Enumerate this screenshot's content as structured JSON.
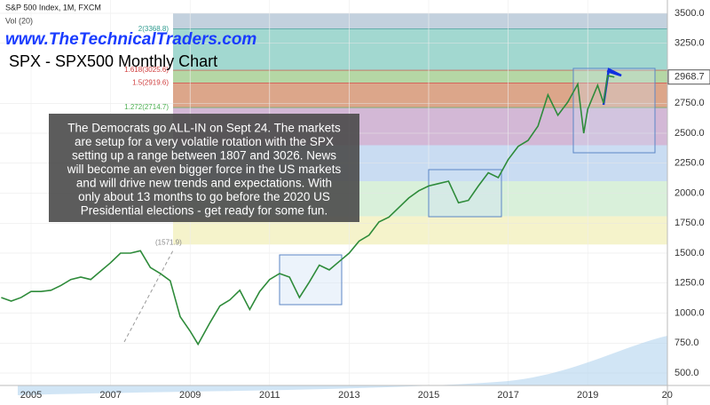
{
  "chart_data": {
    "type": "line",
    "header": "S&P 500 Index, 1M, FXCM",
    "volume_label": "Vol (20)",
    "website": "www.TheTechnicalTraders.com",
    "title": "SPX - SPX500 Monthly Chart",
    "note_lines": [
      "The Democrats go ALL-IN on Sept 24.  The markets",
      "are setup for a very volatile rotation with the SPX",
      "setting up a range between 1807 and 3026. News",
      "will become an even bigger force in the US markets",
      "and will drive new trends and expectations.  With",
      "only about 13 months to go before the 2020 US",
      "Presidential elections - get ready for some fun."
    ],
    "x": [
      2004.25,
      2004.5,
      2004.75,
      2005,
      2005.25,
      2005.5,
      2005.75,
      2006,
      2006.25,
      2006.5,
      2006.75,
      2007,
      2007.25,
      2007.5,
      2007.75,
      2008,
      2008.25,
      2008.5,
      2008.75,
      2009,
      2009.2,
      2009.5,
      2009.75,
      2010,
      2010.25,
      2010.5,
      2010.75,
      2011,
      2011.25,
      2011.5,
      2011.75,
      2012,
      2012.25,
      2012.5,
      2012.75,
      2013,
      2013.25,
      2013.5,
      2013.75,
      2014,
      2014.25,
      2014.5,
      2014.75,
      2015,
      2015.25,
      2015.5,
      2015.75,
      2016,
      2016.25,
      2016.5,
      2016.75,
      2017,
      2017.25,
      2017.5,
      2017.75,
      2018,
      2018.25,
      2018.5,
      2018.75,
      2018.9,
      2019,
      2019.25,
      2019.4,
      2019.5,
      2019.67
    ],
    "series": [
      {
        "name": "SPX",
        "color": "#2e8b3a",
        "values": [
          1130,
          1100,
          1130,
          1180,
          1180,
          1190,
          1230,
          1280,
          1300,
          1280,
          1350,
          1420,
          1500,
          1500,
          1520,
          1380,
          1330,
          1270,
          970,
          850,
          740,
          920,
          1060,
          1110,
          1190,
          1030,
          1180,
          1280,
          1330,
          1300,
          1130,
          1260,
          1400,
          1360,
          1430,
          1500,
          1600,
          1650,
          1760,
          1800,
          1880,
          1960,
          2020,
          2060,
          2080,
          2100,
          1920,
          1940,
          2060,
          2170,
          2130,
          2280,
          2390,
          2440,
          2560,
          2820,
          2650,
          2760,
          2910,
          2500,
          2700,
          2900,
          2750,
          2980,
          2968.7
        ]
      }
    ],
    "fib_levels": [
      {
        "label": "2(3368.8)",
        "value": 3368.8,
        "color": "#2e9b8f"
      },
      {
        "label": "1.618(3025.6)",
        "value": 3025.6,
        "color": "#d04040"
      },
      {
        "label": "1.5(2919.6)",
        "value": 2919.6,
        "color": "#d04040"
      },
      {
        "label": "1.272(2714.7)",
        "value": 2714.7,
        "color": "#4caf50"
      },
      {
        "label": "(1571.9)",
        "value": 1571.9,
        "color": "#888888"
      }
    ],
    "bands": [
      {
        "from": 3368.8,
        "to": 3500,
        "color": "#c3d1de"
      },
      {
        "from": 3025.6,
        "to": 3368.8,
        "color": "#a2d8d0"
      },
      {
        "from": 2919.6,
        "to": 3025.6,
        "color": "#b5d7a5"
      },
      {
        "from": 2714.7,
        "to": 2919.6,
        "color": "#dca68a"
      },
      {
        "from": 2400,
        "to": 2714.7,
        "color": "#d3b8d6"
      },
      {
        "from": 2100,
        "to": 2400,
        "color": "#c9dcf2"
      },
      {
        "from": 1807,
        "to": 2100,
        "color": "#d9f0da"
      },
      {
        "from": 1571.9,
        "to": 1807,
        "color": "#f5f3cb"
      }
    ],
    "xlim": [
      2004.2,
      2021.05
    ],
    "xticks": [
      2005,
      2007,
      2009,
      2011,
      2013,
      2015,
      2017,
      2019,
      {
        "value": 2021,
        "label": "20"
      }
    ],
    "ylim": [
      500,
      3500
    ],
    "yticks": [
      {
        "value": 500,
        "label": "500.0"
      },
      {
        "value": 750,
        "label": "750.0"
      },
      {
        "value": 1000,
        "label": "1000.0"
      },
      {
        "value": 1250,
        "label": "1250.0"
      },
      {
        "value": 1500,
        "label": "1500.0"
      },
      {
        "value": 1750,
        "label": "1750.0"
      },
      {
        "value": 2000,
        "label": "2000.0"
      },
      {
        "value": 2250,
        "label": "2250.0"
      },
      {
        "value": 2500,
        "label": "2500.0"
      },
      {
        "value": 2750,
        "label": "2750.0"
      },
      {
        "value": 3250,
        "label": "3250.0"
      },
      {
        "value": 3500,
        "label": "3500.0"
      }
    ]
  }
}
